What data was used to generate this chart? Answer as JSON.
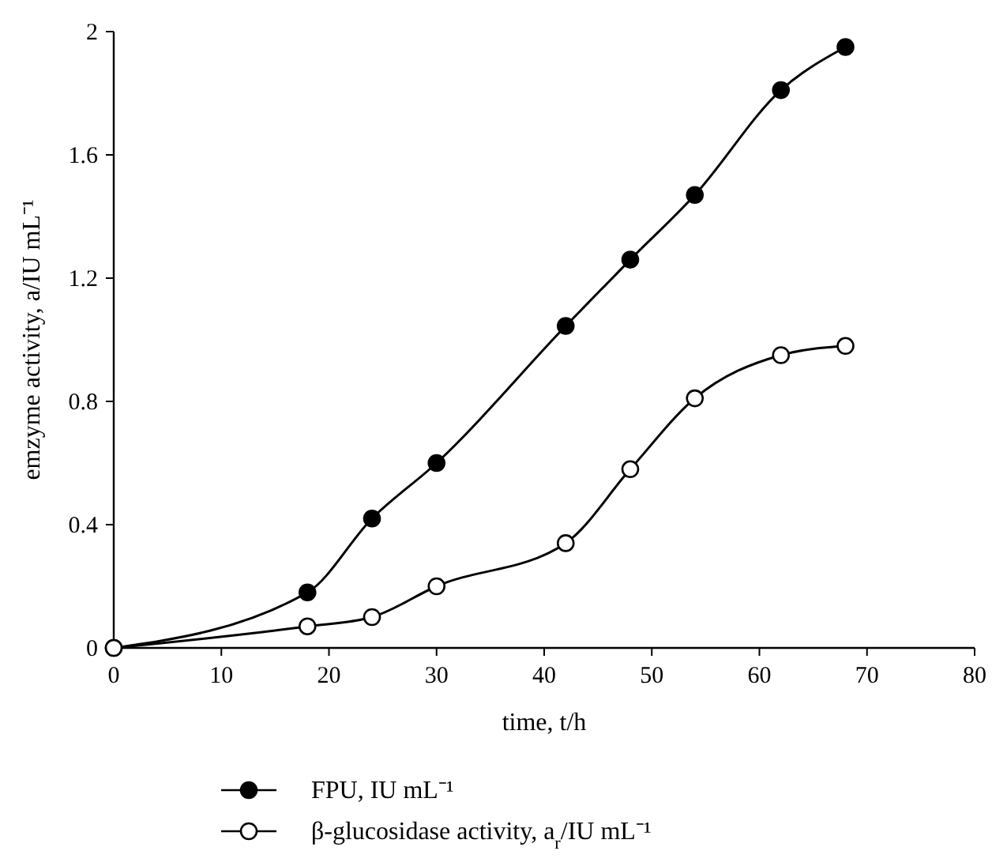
{
  "chart_data": {
    "type": "line",
    "xlabel": "time, t/h",
    "ylabel": "emzyme activity, a/IU mL⁻¹",
    "x": [
      0,
      18,
      24,
      30,
      42,
      48,
      54,
      62,
      68
    ],
    "xlim": [
      0,
      80
    ],
    "xticks": [
      0,
      10,
      20,
      30,
      40,
      50,
      60,
      70,
      80
    ],
    "ylim": [
      0,
      2
    ],
    "yticks": [
      0,
      0.4,
      0.8,
      1.2,
      1.6,
      2
    ],
    "grid": false,
    "legend": "bottom",
    "marker": "circle",
    "line_style": "solid",
    "series": [
      {
        "name": "FPU, IU mL⁻¹",
        "color": "#000000",
        "values": [
          0,
          0.18,
          0.42,
          0.6,
          1.045,
          1.26,
          1.47,
          1.81,
          1.95
        ]
      },
      {
        "name": "β-glucosidase activity, a$_{r}$/IU mL⁻¹",
        "color": "#000000",
        "values": [
          0,
          0.07,
          0.1,
          0.2,
          0.34,
          0.58,
          0.81,
          0.95,
          0.98
        ]
      }
    ]
  }
}
